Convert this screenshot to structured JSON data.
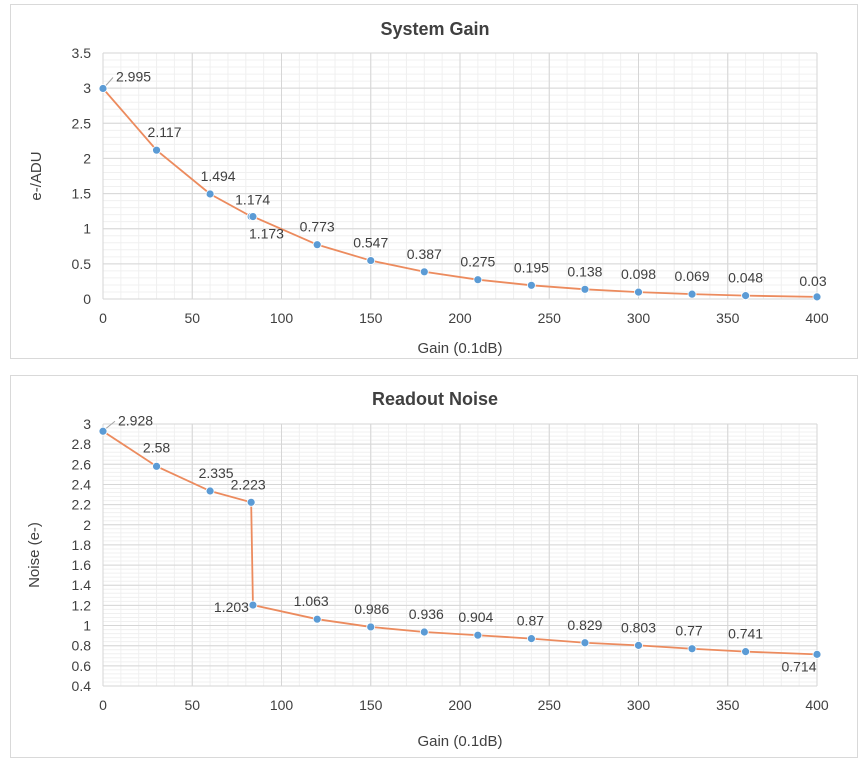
{
  "chart_data": [
    {
      "type": "line",
      "title": "System Gain",
      "xlabel": "Gain (0.1dB)",
      "ylabel": "e-/ADU",
      "xlim": [
        0,
        400
      ],
      "ylim": [
        0,
        3.5
      ],
      "xticks": [
        0,
        50,
        100,
        150,
        200,
        250,
        300,
        350,
        400
      ],
      "yticks": [
        0,
        0.5,
        1,
        1.5,
        2,
        2.5,
        3,
        3.5
      ],
      "ytick_labels": [
        "0",
        "0.5",
        "1",
        "1.5",
        "2",
        "2.5",
        "3",
        "3.5"
      ],
      "grid": true,
      "line_color": "#ec8b5e",
      "marker_color": "#5b9bd5",
      "series": [
        {
          "name": "System Gain",
          "x": [
            0,
            30,
            60,
            83,
            84,
            120,
            150,
            180,
            210,
            240,
            270,
            300,
            330,
            360,
            400
          ],
          "y": [
            2.995,
            2.117,
            1.494,
            1.174,
            1.173,
            0.773,
            0.547,
            0.387,
            0.275,
            0.195,
            0.138,
            0.098,
            0.069,
            0.048,
            0.03
          ],
          "labels": [
            "2.995",
            "2.117",
            "1.494",
            "1.174",
            "1.173",
            "0.773",
            "0.547",
            "0.387",
            "0.275",
            "0.195",
            "0.138",
            "0.098",
            "0.069",
            "0.048",
            "0.03"
          ]
        }
      ]
    },
    {
      "type": "line",
      "title": "Readout Noise",
      "xlabel": "Gain (0.1dB)",
      "ylabel": "Noise (e-)",
      "xlim": [
        0,
        400
      ],
      "ylim": [
        0.4,
        3
      ],
      "xticks": [
        0,
        50,
        100,
        150,
        200,
        250,
        300,
        350,
        400
      ],
      "yticks": [
        0.4,
        0.6,
        0.8,
        1,
        1.2,
        1.4,
        1.6,
        1.8,
        2,
        2.2,
        2.4,
        2.6,
        2.8,
        3
      ],
      "ytick_labels": [
        "0.4",
        "0.6",
        "0.8",
        "1",
        "1.2",
        "1.4",
        "1.6",
        "1.8",
        "2",
        "2.2",
        "2.4",
        "2.6",
        "2.8",
        "3"
      ],
      "grid": true,
      "line_color": "#ec8b5e",
      "marker_color": "#5b9bd5",
      "series": [
        {
          "name": "Readout Noise",
          "x": [
            0,
            30,
            60,
            83,
            84,
            120,
            150,
            180,
            210,
            240,
            270,
            300,
            330,
            360,
            400
          ],
          "y": [
            2.928,
            2.58,
            2.335,
            2.223,
            1.203,
            1.063,
            0.986,
            0.936,
            0.904,
            0.87,
            0.829,
            0.803,
            0.77,
            0.741,
            0.714
          ],
          "labels": [
            "2.928",
            "2.58",
            "2.335",
            "2.223",
            "1.203",
            "1.063",
            "0.986",
            "0.936",
            "0.904",
            "0.87",
            "0.829",
            "0.803",
            "0.77",
            "0.741",
            "0.714"
          ]
        }
      ]
    }
  ]
}
